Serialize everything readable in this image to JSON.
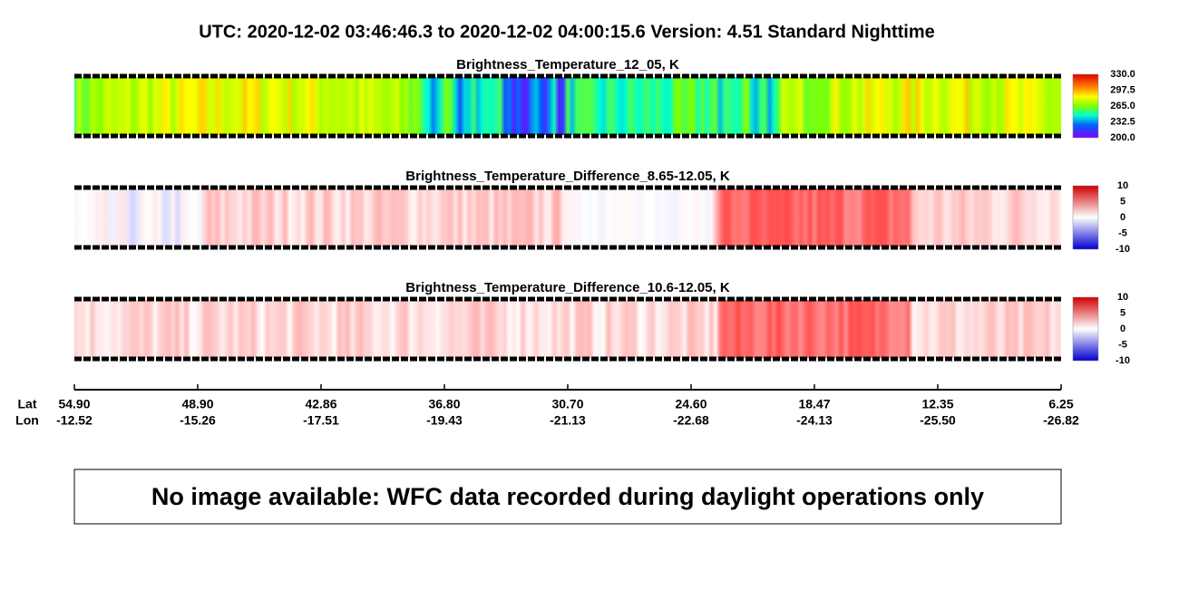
{
  "header": {
    "title": "UTC:  2020-12-02   03:46:46.3  to  2020-12-02   04:00:15.6    Version: 4.51  Standard Nighttime"
  },
  "panels": [
    {
      "title": "Brightness_Temperature_12_05, K",
      "colorbar": [
        "330.0",
        "297.5",
        "265.0",
        "232.5",
        "200.0"
      ]
    },
    {
      "title": "Brightness_Temperature_Difference_8.65-12.05, K",
      "colorbar": [
        "10",
        "5",
        "0",
        "-5",
        "-10"
      ]
    },
    {
      "title": "Brightness_Temperature_Difference_10.6-12.05, K",
      "colorbar": [
        "10",
        "5",
        "0",
        "-5",
        "-10"
      ]
    }
  ],
  "axis": {
    "lat_label": "Lat",
    "lon_label": "Lon",
    "lat": [
      "54.90",
      "48.90",
      "42.86",
      "36.80",
      "30.70",
      "24.60",
      "18.47",
      "12.35",
      "6.25"
    ],
    "lon": [
      "-12.52",
      "-15.26",
      "-17.51",
      "-19.43",
      "-21.13",
      "-22.68",
      "-24.13",
      "-25.50",
      "-26.82"
    ]
  },
  "notice": {
    "text": "No image available: WFC data recorded during daylight operations only"
  }
}
